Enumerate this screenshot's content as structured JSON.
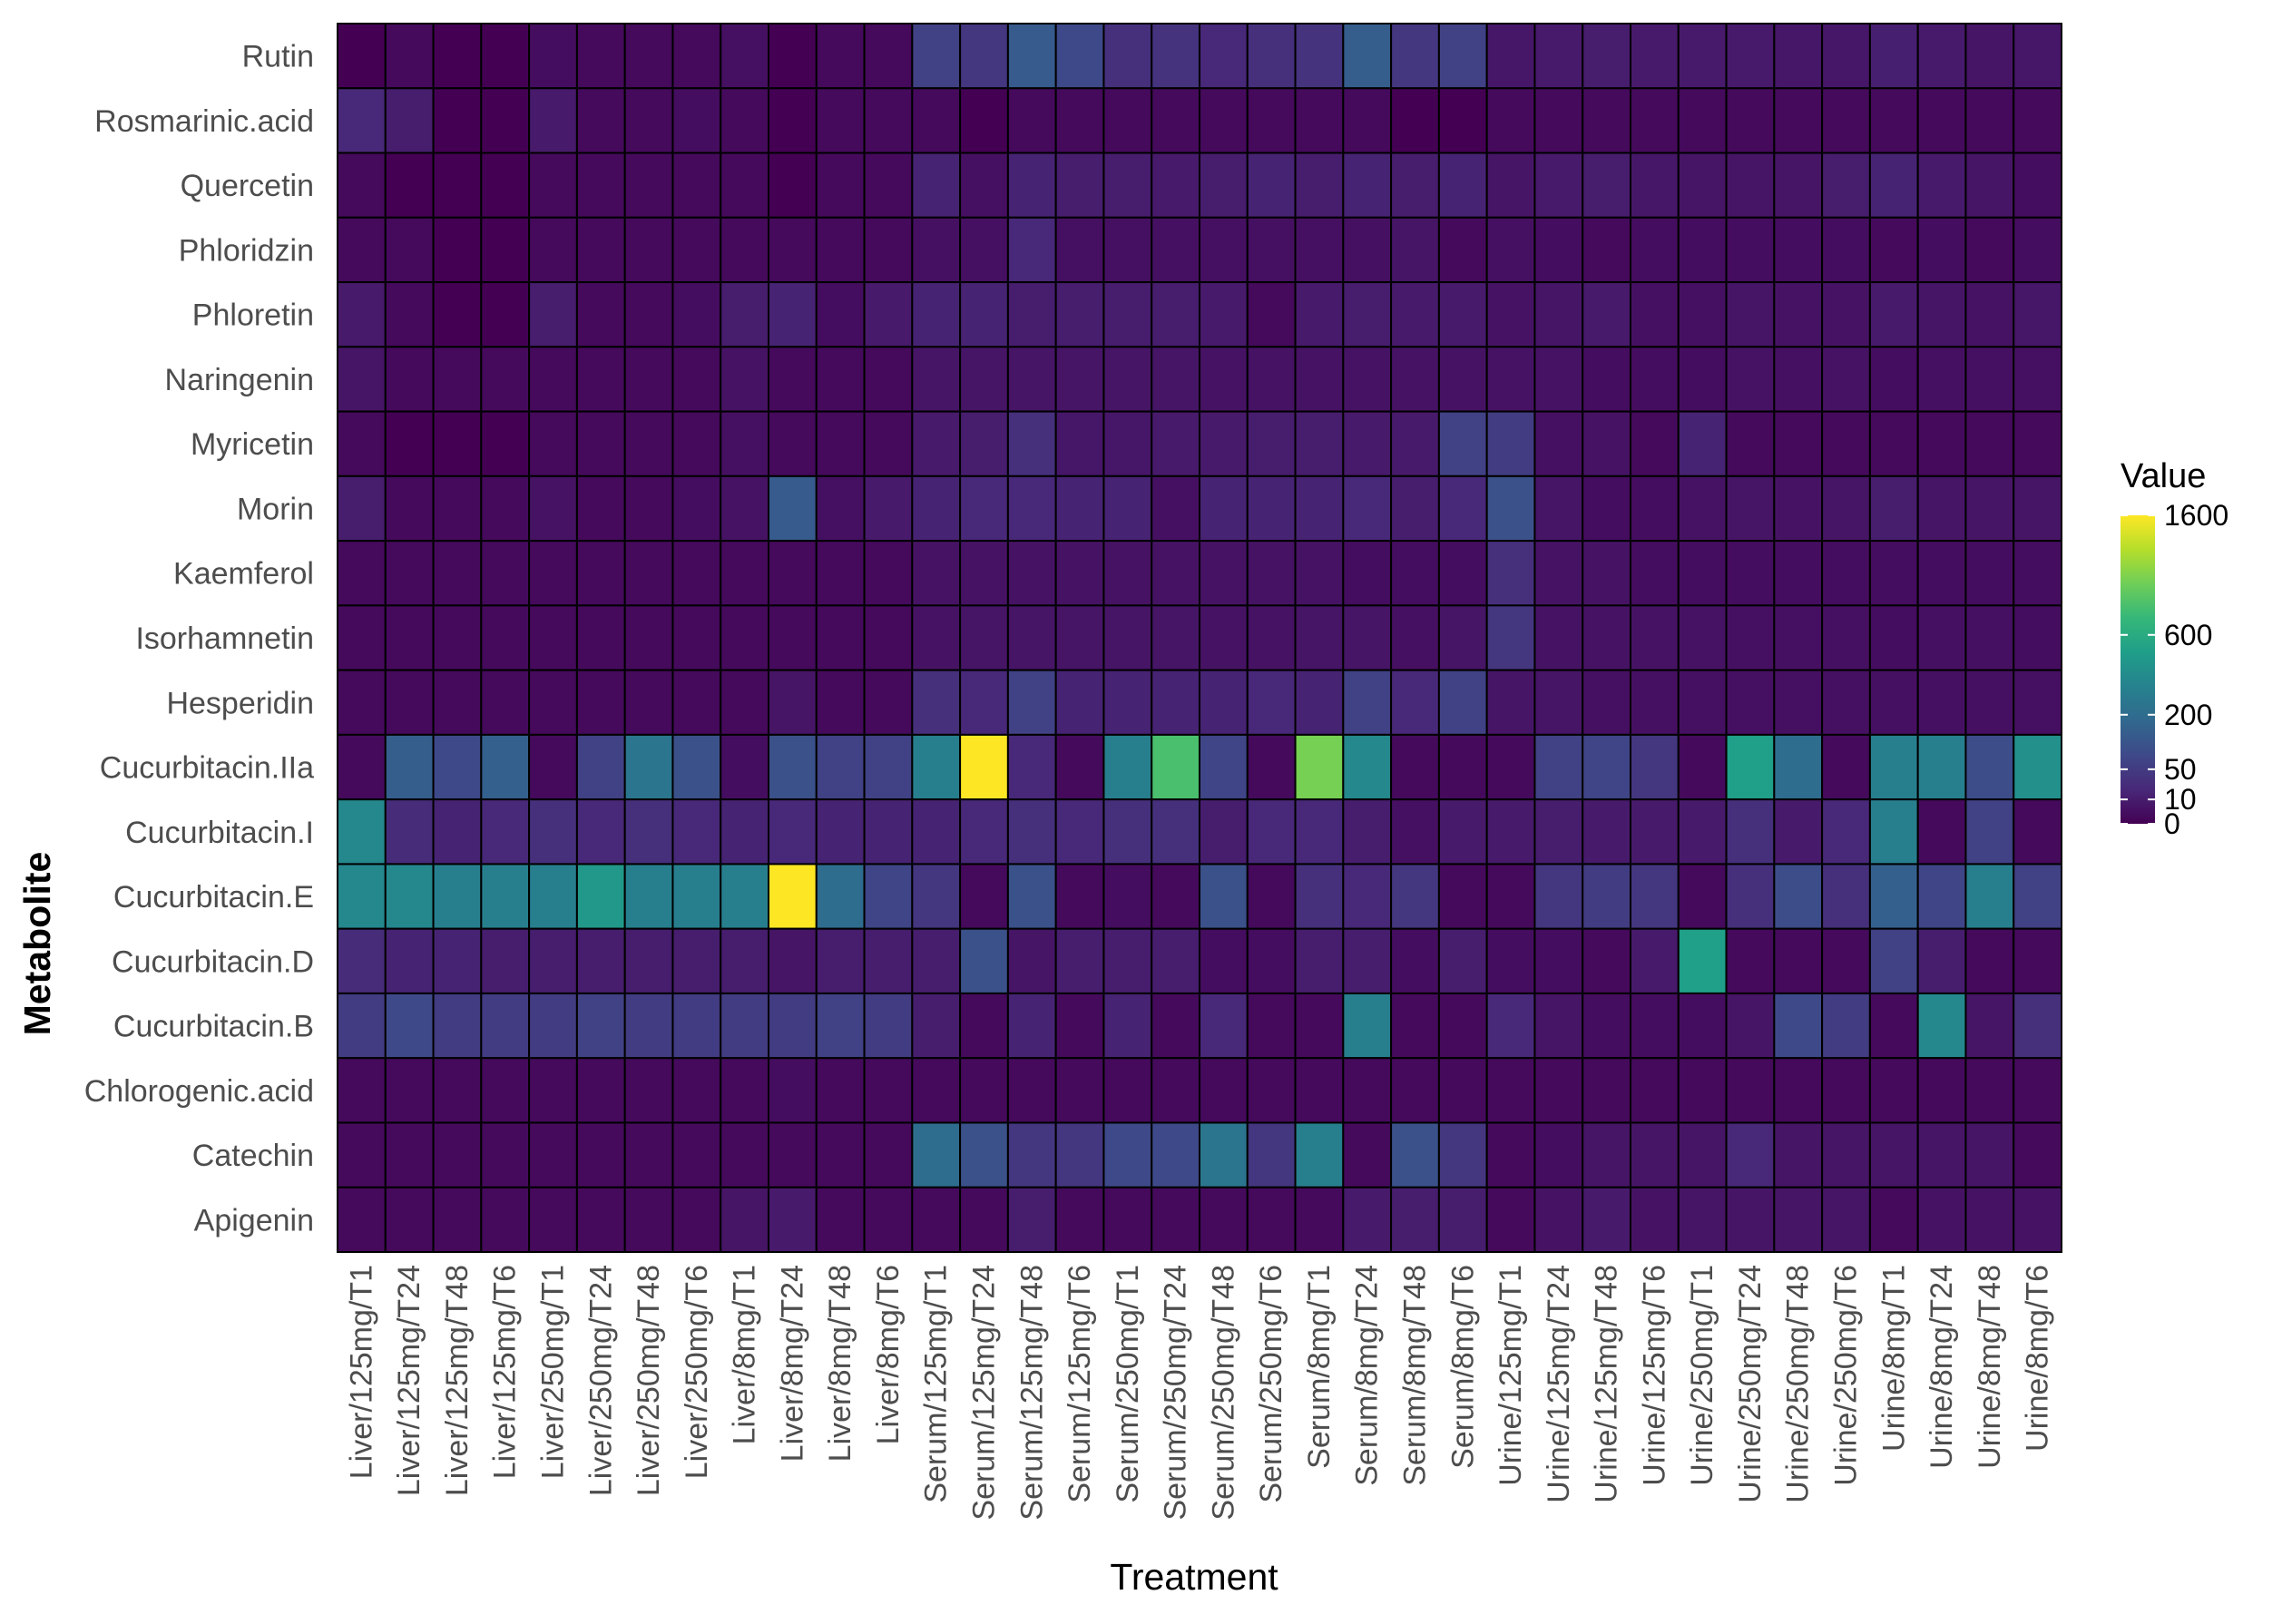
{
  "chart_data": {
    "type": "heatmap",
    "xlabel": "Treatment",
    "ylabel": "Metabolite",
    "legend": {
      "title": "Value",
      "position": "right",
      "ticks": [
        {
          "value": 0,
          "label": "0"
        },
        {
          "value": 10,
          "label": "10"
        },
        {
          "value": 50,
          "label": "50"
        },
        {
          "value": 200,
          "label": "200"
        },
        {
          "value": 600,
          "label": "600"
        },
        {
          "value": 1600,
          "label": "1600"
        }
      ]
    },
    "colors": [
      "#440154",
      "#482878",
      "#3e4989",
      "#31688e",
      "#26828e",
      "#1f9e89",
      "#35b779",
      "#6ece58",
      "#b5de2b",
      "#fde725"
    ],
    "color_scale": "viridis, square-root",
    "value_range": [
      0,
      1600
    ],
    "x": [
      "Liver/125mg/T1",
      "Liver/125mg/T24",
      "Liver/125mg/T48",
      "Liver/125mg/T6",
      "Liver/250mg/T1",
      "Liver/250mg/T24",
      "Liver/250mg/T48",
      "Liver/250mg/T6",
      "Liver/8mg/T1",
      "Liver/8mg/T24",
      "Liver/8mg/T48",
      "Liver/8mg/T6",
      "Serum/125mg/T1",
      "Serum/125mg/T24",
      "Serum/125mg/T48",
      "Serum/125mg/T6",
      "Serum/250mg/T1",
      "Serum/250mg/T24",
      "Serum/250mg/T48",
      "Serum/250mg/T6",
      "Serum/8mg/T1",
      "Serum/8mg/T24",
      "Serum/8mg/T48",
      "Serum/8mg/T6",
      "Urine/125mg/T1",
      "Urine/125mg/T24",
      "Urine/125mg/T48",
      "Urine/125mg/T6",
      "Urine/250mg/T1",
      "Urine/250mg/T24",
      "Urine/250mg/T48",
      "Urine/250mg/T6",
      "Urine/8mg/T1",
      "Urine/8mg/T24",
      "Urine/8mg/T48",
      "Urine/8mg/T6"
    ],
    "y": [
      "Rutin",
      "Rosmarinic.acid",
      "Quercetin",
      "Phloridzin",
      "Phloretin",
      "Naringenin",
      "Myricetin",
      "Morin",
      "Kaemferol",
      "Isorhamnetin",
      "Hesperidin",
      "Cucurbitacin.IIa",
      "Cucurbitacin.I",
      "Cucurbitacin.E",
      "Cucurbitacin.D",
      "Cucurbitacin.B",
      "Chlorogenic.acid",
      "Catechin",
      "Apigenin"
    ],
    "values": [
      [
        0,
        1,
        0,
        0,
        2,
        1,
        1,
        1,
        3,
        0,
        1,
        1,
        60,
        40,
        130,
        80,
        30,
        35,
        20,
        30,
        35,
        140,
        40,
        60,
        6,
        8,
        10,
        8,
        8,
        8,
        6,
        6,
        12,
        8,
        5,
        6
      ],
      [
        20,
        10,
        0,
        0,
        8,
        1,
        1,
        2,
        1,
        0,
        1,
        1,
        1,
        0,
        1,
        1,
        1,
        1,
        1,
        1,
        1,
        1,
        0,
        0,
        1,
        1,
        1,
        1,
        1,
        1,
        1,
        1,
        1,
        1,
        1,
        1
      ],
      [
        1,
        0,
        0,
        0,
        1,
        1,
        1,
        1,
        1,
        0,
        1,
        1,
        15,
        3,
        15,
        10,
        10,
        8,
        10,
        15,
        10,
        15,
        10,
        15,
        5,
        8,
        10,
        6,
        5,
        5,
        5,
        10,
        15,
        8,
        5,
        2
      ],
      [
        1,
        1,
        0,
        0,
        1,
        1,
        1,
        1,
        1,
        1,
        1,
        1,
        3,
        3,
        20,
        3,
        3,
        3,
        3,
        3,
        3,
        3,
        5,
        1,
        3,
        2,
        1,
        2,
        2,
        2,
        2,
        2,
        1,
        2,
        1,
        2
      ],
      [
        8,
        1,
        0,
        0,
        10,
        1,
        1,
        2,
        10,
        15,
        2,
        8,
        15,
        15,
        10,
        10,
        10,
        10,
        8,
        1,
        8,
        10,
        8,
        8,
        4,
        5,
        8,
        3,
        3,
        5,
        4,
        4,
        8,
        5,
        4,
        6
      ],
      [
        5,
        1,
        1,
        1,
        1,
        1,
        1,
        1,
        4,
        1,
        1,
        1,
        5,
        5,
        5,
        5,
        5,
        5,
        4,
        4,
        4,
        4,
        4,
        4,
        4,
        4,
        2,
        2,
        2,
        4,
        3,
        4,
        2,
        3,
        3,
        3
      ],
      [
        1,
        0,
        0,
        0,
        1,
        1,
        1,
        1,
        3,
        1,
        1,
        1,
        8,
        10,
        30,
        6,
        6,
        8,
        8,
        10,
        10,
        8,
        8,
        60,
        50,
        3,
        4,
        1,
        15,
        1,
        1,
        1,
        1,
        1,
        1,
        1
      ],
      [
        10,
        1,
        1,
        1,
        4,
        1,
        1,
        2,
        4,
        130,
        3,
        8,
        15,
        20,
        20,
        15,
        15,
        3,
        15,
        15,
        15,
        20,
        10,
        20,
        100,
        5,
        2,
        2,
        4,
        5,
        4,
        5,
        10,
        5,
        5,
        5
      ],
      [
        1,
        1,
        1,
        1,
        1,
        1,
        1,
        1,
        1,
        1,
        1,
        1,
        4,
        4,
        4,
        4,
        4,
        4,
        4,
        4,
        4,
        2,
        2,
        2,
        30,
        4,
        4,
        2,
        2,
        2,
        2,
        2,
        2,
        2,
        2,
        2
      ],
      [
        1,
        1,
        1,
        1,
        1,
        1,
        1,
        1,
        1,
        1,
        1,
        1,
        4,
        5,
        5,
        5,
        5,
        5,
        4,
        4,
        5,
        5,
        3,
        5,
        40,
        4,
        4,
        4,
        4,
        3,
        3,
        3,
        2,
        3,
        3,
        2
      ],
      [
        1,
        1,
        1,
        1,
        1,
        1,
        1,
        1,
        1,
        5,
        1,
        1,
        30,
        20,
        60,
        15,
        15,
        15,
        15,
        20,
        15,
        60,
        20,
        60,
        5,
        5,
        3,
        3,
        3,
        3,
        3,
        3,
        3,
        3,
        3,
        3
      ],
      [
        1,
        140,
        80,
        150,
        1,
        60,
        250,
        100,
        2,
        100,
        60,
        60,
        300,
        1600,
        20,
        1,
        300,
        800,
        70,
        1,
        1000,
        350,
        1,
        1,
        1,
        60,
        70,
        40,
        1,
        500,
        200,
        1,
        300,
        300,
        90,
        400
      ],
      [
        350,
        25,
        15,
        20,
        30,
        20,
        30,
        20,
        15,
        20,
        15,
        15,
        15,
        20,
        30,
        20,
        30,
        30,
        10,
        20,
        20,
        10,
        3,
        8,
        8,
        10,
        8,
        8,
        8,
        30,
        8,
        20,
        300,
        1,
        60,
        1
      ],
      [
        350,
        350,
        300,
        300,
        300,
        450,
        300,
        300,
        300,
        1600,
        200,
        70,
        40,
        1,
        100,
        1,
        2,
        1,
        100,
        1,
        30,
        20,
        40,
        1,
        1,
        40,
        50,
        40,
        1,
        30,
        90,
        30,
        150,
        70,
        300,
        60
      ],
      [
        25,
        15,
        15,
        10,
        10,
        10,
        10,
        10,
        10,
        5,
        10,
        10,
        10,
        100,
        5,
        10,
        10,
        10,
        2,
        2,
        10,
        10,
        2,
        10,
        2,
        2,
        1,
        8,
        500,
        1,
        1,
        1,
        60,
        10,
        1,
        1
      ],
      [
        50,
        80,
        50,
        50,
        50,
        60,
        50,
        50,
        50,
        50,
        60,
        50,
        10,
        1,
        15,
        1,
        15,
        1,
        20,
        1,
        1,
        300,
        1,
        1,
        20,
        5,
        2,
        2,
        2,
        5,
        80,
        50,
        1,
        350,
        5,
        30
      ],
      [
        1,
        1,
        1,
        1,
        1,
        1,
        1,
        1,
        1,
        2,
        1,
        1,
        1,
        1,
        1,
        1,
        1,
        1,
        1,
        1,
        1,
        1,
        1,
        1,
        1,
        1,
        1,
        1,
        1,
        1,
        1,
        1,
        1,
        1,
        1,
        1
      ],
      [
        1,
        1,
        1,
        1,
        1,
        1,
        1,
        1,
        1,
        1,
        1,
        1,
        200,
        100,
        40,
        40,
        80,
        80,
        250,
        40,
        300,
        1,
        100,
        40,
        1,
        2,
        5,
        5,
        5,
        20,
        5,
        5,
        5,
        5,
        5,
        1
      ],
      [
        1,
        1,
        1,
        1,
        1,
        1,
        1,
        1,
        5,
        8,
        1,
        1,
        1,
        1,
        10,
        1,
        1,
        1,
        1,
        1,
        1,
        8,
        10,
        10,
        1,
        4,
        8,
        4,
        5,
        5,
        5,
        5,
        1,
        4,
        4,
        4
      ]
    ]
  }
}
